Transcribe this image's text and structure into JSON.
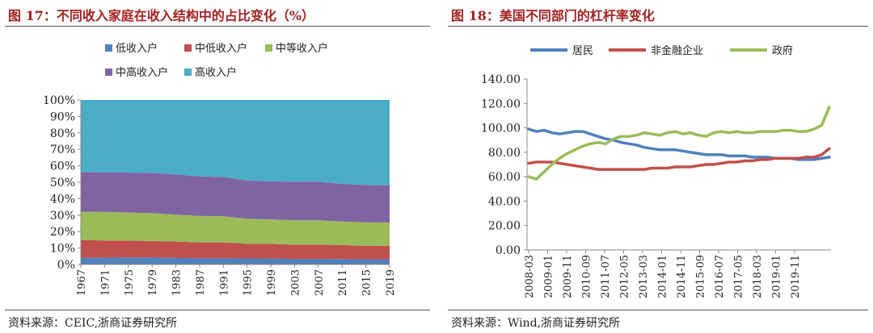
{
  "left_figure": {
    "title": "图 17：不同收入家庭在收入结构中的占比变化（%）",
    "source": "资料来源：CEIC,浙商证券研究所"
  },
  "right_figure": {
    "title": "图 18：美国不同部门的杠杆率变化",
    "source": "资料来源：Wind,浙商证券研究所"
  },
  "chart_data": [
    {
      "type": "area",
      "stacked": "percent",
      "title": "不同收入家庭在收入结构中的占比变化（%）",
      "xlabel": "",
      "ylabel": "",
      "ylim": [
        0,
        100
      ],
      "y_ticks": [
        "0%",
        "10%",
        "20%",
        "30%",
        "40%",
        "50%",
        "60%",
        "70%",
        "80%",
        "90%",
        "100%"
      ],
      "x_ticks": [
        "1967",
        "1971",
        "1975",
        "1979",
        "1983",
        "1987",
        "1991",
        "1995",
        "1999",
        "2003",
        "2007",
        "2011",
        "2015",
        "2019"
      ],
      "legend_position": "top",
      "series": [
        {
          "name": "低收入户",
          "color": "#4f81bd",
          "values": [
            4.0,
            4.1,
            4.3,
            4.2,
            4.0,
            3.8,
            3.8,
            3.7,
            3.6,
            3.4,
            3.4,
            3.3,
            3.1,
            3.1
          ]
        },
        {
          "name": "中低收入户",
          "color": "#c0504d",
          "values": [
            10.8,
            10.5,
            10.2,
            10.1,
            9.9,
            9.6,
            9.6,
            8.9,
            8.9,
            8.7,
            8.7,
            8.5,
            8.2,
            8.3
          ]
        },
        {
          "name": "中等收入户",
          "color": "#9bbb59",
          "values": [
            17.3,
            17.4,
            17.1,
            16.9,
            16.4,
            16.1,
            15.9,
            15.2,
            14.9,
            14.8,
            14.8,
            14.3,
            14.3,
            14.1
          ]
        },
        {
          "name": "中高收入户",
          "color": "#8064a2",
          "values": [
            24.2,
            24.0,
            24.3,
            24.5,
            24.4,
            24.1,
            23.9,
            23.3,
            23.1,
            23.4,
            23.4,
            23.0,
            22.7,
            22.6
          ]
        },
        {
          "name": "高收入户",
          "color": "#4bacc6",
          "values": [
            43.7,
            44.0,
            44.1,
            44.3,
            45.3,
            46.4,
            46.8,
            48.9,
            49.5,
            49.7,
            49.7,
            50.9,
            51.7,
            51.9
          ]
        }
      ]
    },
    {
      "type": "line",
      "title": "美国不同部门的杠杆率变化",
      "xlabel": "",
      "ylabel": "",
      "ylim": [
        0,
        140
      ],
      "y_ticks": [
        "0.00",
        "20.00",
        "40.00",
        "60.00",
        "80.00",
        "100.00",
        "120.00",
        "140.00"
      ],
      "x_ticks": [
        "2008-03",
        "2009-01",
        "2009-11",
        "2010-09",
        "2011-07",
        "2012-05",
        "2013-03",
        "2014-01",
        "2014-11",
        "2015-09",
        "2016-07",
        "2017-05",
        "2018-03",
        "2019-01",
        "2019-11"
      ],
      "legend_position": "top",
      "series": [
        {
          "name": "居民",
          "color": "#4f81bd",
          "values": [
            99,
            97,
            98,
            96,
            95,
            96,
            97,
            97,
            95,
            93,
            91,
            90,
            88,
            87,
            86,
            84,
            83,
            82,
            82,
            82,
            81,
            80,
            79,
            78,
            78,
            78,
            77,
            77,
            77,
            76,
            76,
            76,
            75,
            75,
            75,
            74,
            74,
            74,
            75,
            76
          ]
        },
        {
          "name": "非金融企业",
          "color": "#c0504d",
          "values": [
            71,
            72,
            72,
            72,
            71,
            70,
            69,
            68,
            67,
            66,
            66,
            66,
            66,
            66,
            66,
            66,
            67,
            67,
            67,
            68,
            68,
            68,
            69,
            70,
            70,
            71,
            72,
            72,
            73,
            73,
            74,
            74,
            75,
            75,
            75,
            75,
            76,
            76,
            78,
            83
          ]
        },
        {
          "name": "政府",
          "color": "#9bbb59",
          "values": [
            60,
            58,
            64,
            70,
            75,
            79,
            82,
            85,
            87,
            88,
            87,
            91,
            93,
            93,
            94,
            96,
            95,
            94,
            96,
            97,
            95,
            96,
            94,
            93,
            96,
            97,
            96,
            97,
            96,
            96,
            97,
            97,
            97,
            98,
            98,
            97,
            97,
            99,
            102,
            117
          ]
        }
      ]
    }
  ]
}
